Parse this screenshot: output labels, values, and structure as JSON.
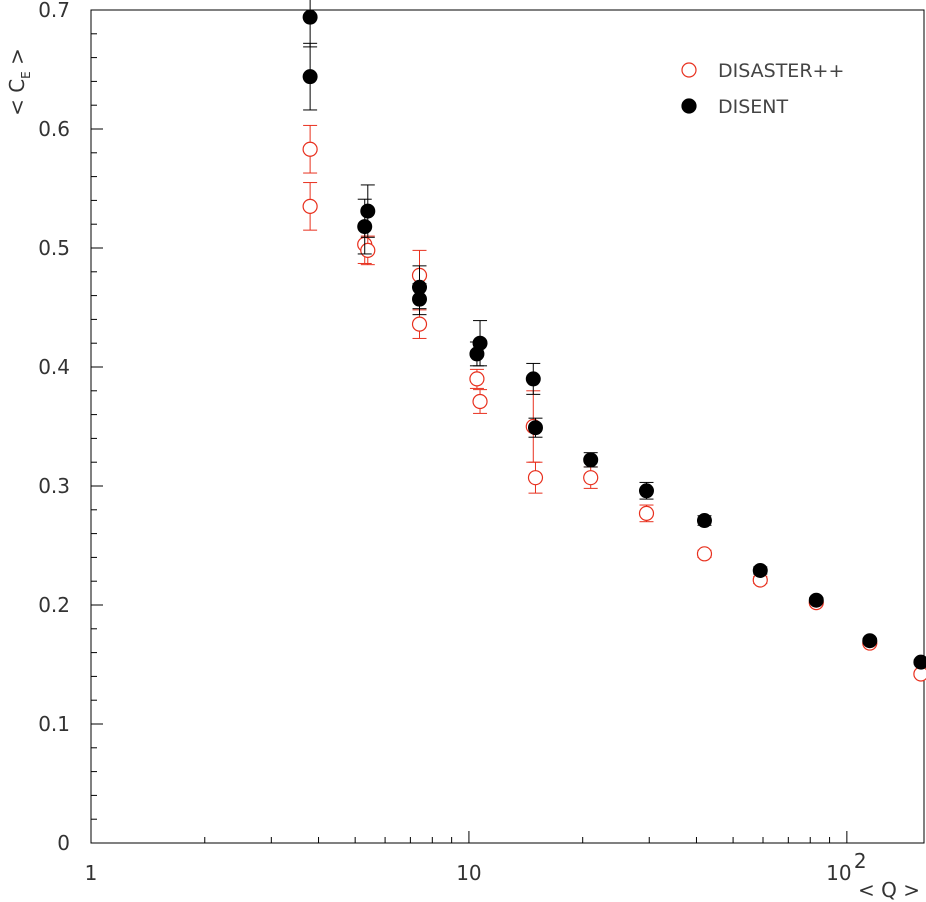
{
  "chart_data": {
    "type": "scatter",
    "title": "",
    "xlabel": "< Q >",
    "ylabel": "< C",
    "ylabel_sub": "E",
    "ylabel_close": " >",
    "xscale": "log",
    "xlim": [
      1,
      160
    ],
    "ylim": [
      0,
      0.7
    ],
    "grid": false,
    "legend_position": "top-right",
    "y_ticks": [
      "0",
      "0.1",
      "0.2",
      "0.3",
      "0.4",
      "0.5",
      "0.6",
      "0.7"
    ],
    "y_tick_values": [
      0,
      0.1,
      0.2,
      0.3,
      0.4,
      0.5,
      0.6,
      0.7
    ],
    "x_ticks": [
      {
        "value": 1,
        "base": "1",
        "exp": ""
      },
      {
        "value": 10,
        "base": "10",
        "exp": ""
      },
      {
        "value": 100,
        "base": "10",
        "exp": "2"
      }
    ],
    "series": [
      {
        "name": "DISASTER++",
        "color": "#e8301e",
        "marker": "open-circle",
        "points": [
          {
            "x": 3.8,
            "y": 0.583,
            "err": 0.02
          },
          {
            "x": 3.8,
            "y": 0.535,
            "err": 0.02
          },
          {
            "x": 5.3,
            "y": 0.503,
            "err": 0.016
          },
          {
            "x": 5.4,
            "y": 0.498,
            "err": 0.012
          },
          {
            "x": 7.4,
            "y": 0.477,
            "err": 0.021
          },
          {
            "x": 7.4,
            "y": 0.436,
            "err": 0.012
          },
          {
            "x": 10.5,
            "y": 0.39,
            "err": 0.008
          },
          {
            "x": 10.7,
            "y": 0.371,
            "err": 0.01
          },
          {
            "x": 14.8,
            "y": 0.35,
            "err": 0.03
          },
          {
            "x": 15.0,
            "y": 0.307,
            "err": 0.013
          },
          {
            "x": 21.0,
            "y": 0.307,
            "err": 0.009
          },
          {
            "x": 29.5,
            "y": 0.277,
            "err": 0.007
          },
          {
            "x": 42.0,
            "y": 0.243,
            "err": 0.003
          },
          {
            "x": 59.0,
            "y": 0.221,
            "err": 0.003
          },
          {
            "x": 83.0,
            "y": 0.202,
            "err": 0.002
          },
          {
            "x": 115.0,
            "y": 0.168,
            "err": 0.002
          },
          {
            "x": 157.0,
            "y": 0.142,
            "err": 0.002
          }
        ]
      },
      {
        "name": "DISENT",
        "color": "#000000",
        "marker": "filled-circle",
        "points": [
          {
            "x": 3.8,
            "y": 0.694,
            "err": 0.025
          },
          {
            "x": 3.8,
            "y": 0.644,
            "err": 0.028
          },
          {
            "x": 5.3,
            "y": 0.518,
            "err": 0.023
          },
          {
            "x": 5.4,
            "y": 0.531,
            "err": 0.022
          },
          {
            "x": 7.4,
            "y": 0.467,
            "err": 0.018
          },
          {
            "x": 7.4,
            "y": 0.457,
            "err": 0.013
          },
          {
            "x": 10.5,
            "y": 0.411,
            "err": 0.01
          },
          {
            "x": 10.7,
            "y": 0.42,
            "err": 0.019
          },
          {
            "x": 14.8,
            "y": 0.39,
            "err": 0.013
          },
          {
            "x": 15.0,
            "y": 0.349,
            "err": 0.008
          },
          {
            "x": 21.0,
            "y": 0.322,
            "err": 0.006
          },
          {
            "x": 29.5,
            "y": 0.296,
            "err": 0.007
          },
          {
            "x": 42.0,
            "y": 0.271,
            "err": 0.004
          },
          {
            "x": 59.0,
            "y": 0.229,
            "err": 0.003
          },
          {
            "x": 83.0,
            "y": 0.204,
            "err": 0.002
          },
          {
            "x": 115.0,
            "y": 0.17,
            "err": 0.002
          },
          {
            "x": 157.0,
            "y": 0.152,
            "err": 0.002
          }
        ]
      }
    ]
  }
}
